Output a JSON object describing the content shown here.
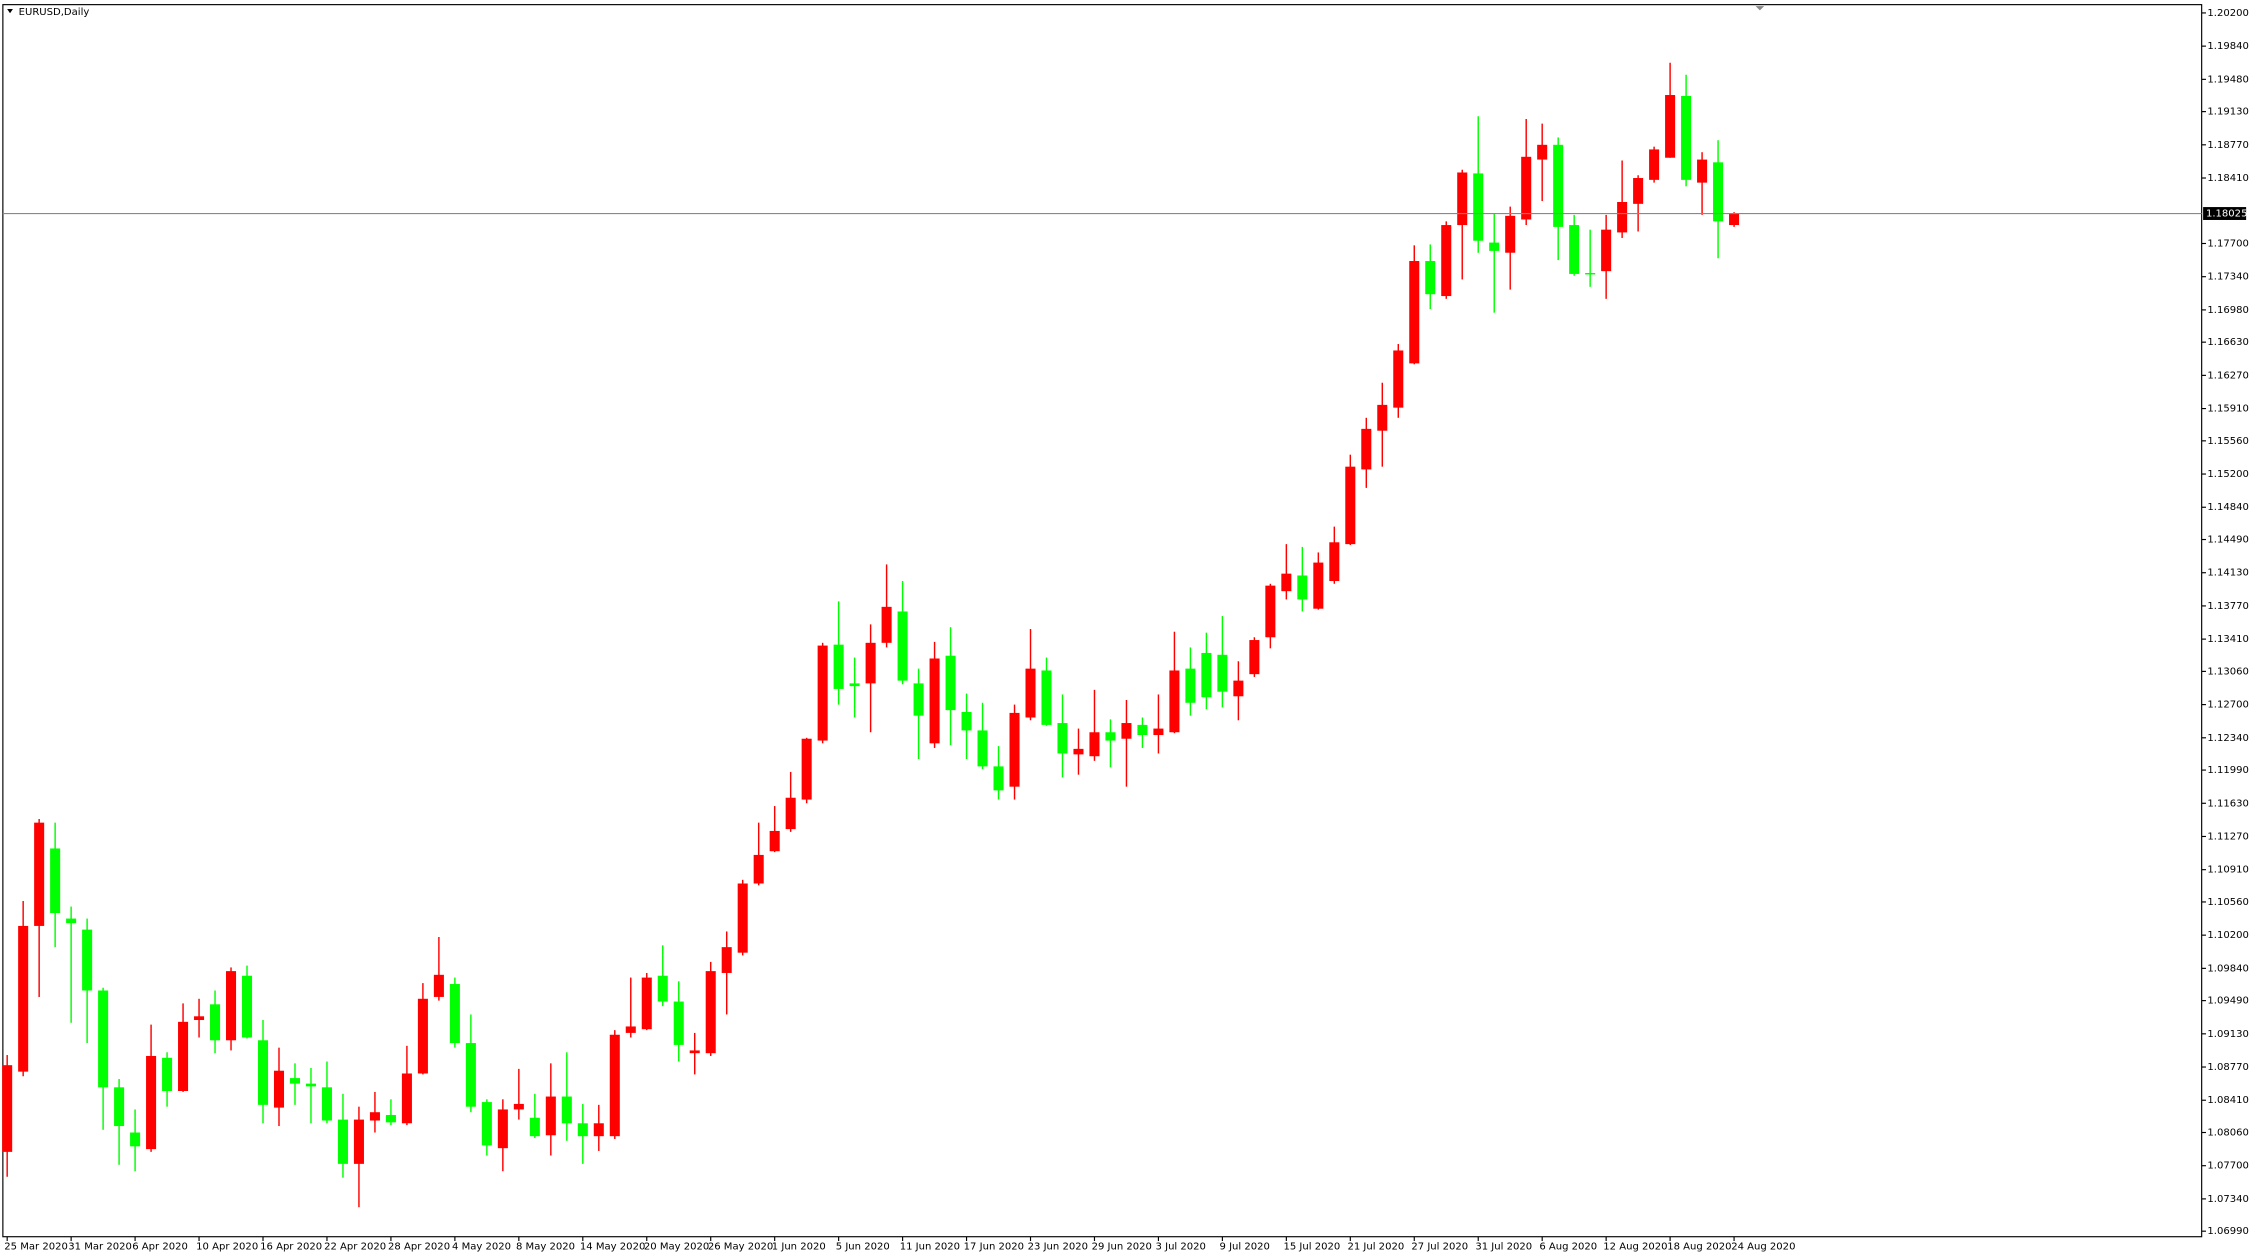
{
  "chart_data": {
    "type": "candlestick",
    "title": "EURUSD,Daily",
    "up_color": "#ff0000",
    "down_color": "#00ff00",
    "grid": false,
    "categories": [
      "25 Mar 2020",
      null,
      null,
      null,
      "31 Mar 2020",
      null,
      null,
      null,
      "6 Apr 2020",
      null,
      null,
      null,
      "10 Apr 2020",
      null,
      null,
      null,
      "16 Apr 2020",
      null,
      null,
      null,
      "22 Apr 2020",
      null,
      null,
      null,
      "28 Apr 2020",
      null,
      null,
      null,
      "4 May 2020",
      null,
      null,
      null,
      "8 May 2020",
      null,
      null,
      null,
      "14 May 2020",
      null,
      null,
      null,
      "20 May 2020",
      null,
      null,
      null,
      "26 May 2020",
      null,
      null,
      null,
      "1 Jun 2020",
      null,
      null,
      null,
      "5 Jun 2020",
      null,
      null,
      null,
      "11 Jun 2020",
      null,
      null,
      null,
      "17 Jun 2020",
      null,
      null,
      null,
      "23 Jun 2020",
      null,
      null,
      null,
      "29 Jun 2020",
      null,
      null,
      null,
      "3 Jul 2020",
      null,
      null,
      null,
      "9 Jul 2020",
      null,
      null,
      null,
      "15 Jul 2020",
      null,
      null,
      null,
      "21 Jul 2020",
      null,
      null,
      null,
      "27 Jul 2020",
      null,
      null,
      null,
      "31 Jul 2020",
      null,
      null,
      null,
      "6 Aug 2020",
      null,
      null,
      null,
      "12 Aug 2020",
      null,
      null,
      null,
      "18 Aug 2020",
      null,
      null,
      null,
      "24 Aug 2020"
    ],
    "open": [
      1.0785,
      1.0872,
      1.103,
      1.1114,
      1.1038,
      1.1026,
      1.096,
      1.0855,
      1.0806,
      1.0788,
      1.0887,
      1.0851,
      1.0928,
      1.0945,
      1.0906,
      1.0976,
      1.0906,
      1.0833,
      1.0865,
      1.0859,
      1.0855,
      1.082,
      1.0772,
      1.0819,
      1.0825,
      1.0816,
      1.087,
      1.0953,
      1.0967,
      1.0903,
      1.0839,
      1.0789,
      1.0831,
      1.0822,
      1.0803,
      1.0845,
      1.0816,
      1.0802,
      1.0802,
      1.0914,
      1.0918,
      1.0976,
      1.0948,
      1.0892,
      1.0892,
      1.0979,
      1.1001,
      1.1076,
      1.1111,
      1.1135,
      1.1167,
      1.1231,
      1.1335,
      1.1293,
      1.1293,
      1.1337,
      1.1371,
      1.1293,
      1.1228,
      1.1323,
      1.1262,
      1.1242,
      1.1203,
      1.1181,
      1.1256,
      1.1307,
      1.125,
      1.1216,
      1.1214,
      1.124,
      1.1233,
      1.1248,
      1.1237,
      1.124,
      1.1309,
      1.1326,
      1.1324,
      1.1279,
      1.1303,
      1.1343,
      1.1393,
      1.141,
      1.1374,
      1.1404,
      1.1444,
      1.1525,
      1.1567,
      1.1592,
      1.164,
      1.1751,
      1.1713,
      1.179,
      1.1846,
      1.1771,
      1.176,
      1.1796,
      1.1861,
      1.1877,
      1.179,
      1.1738,
      1.174,
      1.1782,
      1.1813,
      1.1839,
      1.1863,
      1.193,
      1.1836,
      1.1858,
      1.179
    ],
    "high": [
      1.089,
      1.1057,
      1.1146,
      1.1142,
      1.1051,
      1.1038,
      1.0963,
      1.0864,
      1.0831,
      1.0923,
      1.0893,
      1.0946,
      1.0951,
      1.096,
      1.0985,
      1.0987,
      1.0928,
      1.0898,
      1.0881,
      1.0876,
      1.0883,
      1.0848,
      1.0834,
      1.085,
      1.0842,
      1.09,
      1.0968,
      1.1018,
      1.0974,
      1.0934,
      1.0842,
      1.0842,
      1.0875,
      1.0848,
      1.0881,
      1.0893,
      1.0837,
      1.0836,
      1.0917,
      1.0974,
      1.0979,
      1.1009,
      1.097,
      1.0914,
      1.0991,
      1.1024,
      1.108,
      1.1142,
      1.116,
      1.1197,
      1.1234,
      1.1337,
      1.1382,
      1.1321,
      1.1357,
      1.1422,
      1.1404,
      1.1309,
      1.1338,
      1.1354,
      1.1282,
      1.1272,
      1.1225,
      1.127,
      1.1352,
      1.1321,
      1.1281,
      1.1244,
      1.1286,
      1.1254,
      1.1275,
      1.1256,
      1.1281,
      1.1349,
      1.1332,
      1.1348,
      1.1366,
      1.1317,
      1.1343,
      1.1401,
      1.1444,
      1.1441,
      1.1435,
      1.1463,
      1.1541,
      1.1581,
      1.1619,
      1.1661,
      1.1768,
      1.1769,
      1.1794,
      1.185,
      1.1908,
      1.1802,
      1.181,
      1.1905,
      1.19,
      1.1885,
      1.1801,
      1.1785,
      1.1801,
      1.186,
      1.1844,
      1.1875,
      1.1966,
      1.1953,
      1.1869,
      1.1882,
      1.1804
    ],
    "low": [
      1.0758,
      1.0867,
      1.0953,
      1.1007,
      1.0925,
      1.0903,
      1.0809,
      1.0771,
      1.0764,
      1.0785,
      1.0834,
      1.085,
      1.0909,
      1.0892,
      1.0895,
      1.0908,
      1.0816,
      1.0813,
      1.0836,
      1.0816,
      1.0816,
      1.0757,
      1.0725,
      1.0806,
      1.0814,
      1.0814,
      1.0869,
      1.0949,
      1.0898,
      1.0828,
      1.0781,
      1.0764,
      1.082,
      1.08,
      1.0781,
      1.0797,
      1.0772,
      1.0786,
      1.0799,
      1.0909,
      1.0917,
      1.0943,
      1.0883,
      1.0869,
      1.0889,
      1.0934,
      1.0998,
      1.1074,
      1.111,
      1.1132,
      1.1163,
      1.1228,
      1.127,
      1.1256,
      1.124,
      1.1332,
      1.1292,
      1.1211,
      1.1223,
      1.1226,
      1.1211,
      1.12,
      1.1167,
      1.1167,
      1.1253,
      1.1247,
      1.1191,
      1.1194,
      1.1209,
      1.1202,
      1.1181,
      1.1223,
      1.1217,
      1.1239,
      1.1258,
      1.1265,
      1.1267,
      1.1253,
      1.13,
      1.1331,
      1.1384,
      1.1371,
      1.1373,
      1.1401,
      1.1443,
      1.1505,
      1.1528,
      1.1581,
      1.1639,
      1.1699,
      1.171,
      1.1731,
      1.176,
      1.1695,
      1.172,
      1.179,
      1.1816,
      1.1752,
      1.1735,
      1.1723,
      1.171,
      1.1776,
      1.1783,
      1.1836,
      1.1863,
      1.1832,
      1.1801,
      1.1754,
      1.1788
    ],
    "close": [
      1.0879,
      1.103,
      1.1142,
      1.1044,
      1.1033,
      1.096,
      1.0855,
      1.0813,
      1.0791,
      1.0889,
      1.0851,
      1.0926,
      1.0932,
      1.0906,
      1.0981,
      1.0909,
      1.0836,
      1.0873,
      1.0859,
      1.0856,
      1.0819,
      1.0772,
      1.082,
      1.0828,
      1.0817,
      1.087,
      1.0951,
      1.0977,
      1.0903,
      1.0834,
      1.0792,
      1.0831,
      1.0837,
      1.0802,
      1.0845,
      1.0816,
      1.0802,
      1.0816,
      1.0912,
      1.0921,
      1.0974,
      1.0948,
      1.0901,
      1.0895,
      1.0981,
      1.1007,
      1.1076,
      1.1107,
      1.1133,
      1.1169,
      1.1233,
      1.1334,
      1.1287,
      1.129,
      1.1337,
      1.1376,
      1.1296,
      1.1258,
      1.132,
      1.1264,
      1.1242,
      1.1203,
      1.1177,
      1.1261,
      1.1309,
      1.1248,
      1.1217,
      1.1222,
      1.124,
      1.1231,
      1.125,
      1.1237,
      1.1244,
      1.1307,
      1.1272,
      1.1278,
      1.1284,
      1.1296,
      1.134,
      1.1399,
      1.1412,
      1.1384,
      1.1424,
      1.1446,
      1.1528,
      1.1569,
      1.1595,
      1.1654,
      1.1751,
      1.1715,
      1.179,
      1.1847,
      1.1773,
      1.1762,
      1.18,
      1.1864,
      1.1877,
      1.1788,
      1.1737,
      1.1737,
      1.1785,
      1.1815,
      1.1841,
      1.1872,
      1.1931,
      1.1839,
      1.1861,
      1.1794,
      1.18025
    ],
    "current_price": 1.18025,
    "ylim": [
      1.0693,
      1.2029
    ],
    "yticks": [
      {
        "value": 1.202,
        "label": "1.20200"
      },
      {
        "value": 1.1984,
        "label": "1.19840"
      },
      {
        "value": 1.1948,
        "label": "1.19480"
      },
      {
        "value": 1.1913,
        "label": "1.19130"
      },
      {
        "value": 1.1877,
        "label": "1.18770"
      },
      {
        "value": 1.1841,
        "label": "1.18410"
      },
      {
        "value": 1.177,
        "label": "1.17700"
      },
      {
        "value": 1.1734,
        "label": "1.17340"
      },
      {
        "value": 1.1698,
        "label": "1.16980"
      },
      {
        "value": 1.1663,
        "label": "1.16630"
      },
      {
        "value": 1.1627,
        "label": "1.16270"
      },
      {
        "value": 1.1591,
        "label": "1.15910"
      },
      {
        "value": 1.1556,
        "label": "1.15560"
      },
      {
        "value": 1.152,
        "label": "1.15200"
      },
      {
        "value": 1.1484,
        "label": "1.14840"
      },
      {
        "value": 1.1449,
        "label": "1.14490"
      },
      {
        "value": 1.1413,
        "label": "1.14130"
      },
      {
        "value": 1.1377,
        "label": "1.13770"
      },
      {
        "value": 1.1341,
        "label": "1.13410"
      },
      {
        "value": 1.1306,
        "label": "1.13060"
      },
      {
        "value": 1.127,
        "label": "1.12700"
      },
      {
        "value": 1.1234,
        "label": "1.12340"
      },
      {
        "value": 1.1199,
        "label": "1.11990"
      },
      {
        "value": 1.1163,
        "label": "1.11630"
      },
      {
        "value": 1.1127,
        "label": "1.11270"
      },
      {
        "value": 1.1091,
        "label": "1.10910"
      },
      {
        "value": 1.1056,
        "label": "1.10560"
      },
      {
        "value": 1.102,
        "label": "1.10200"
      },
      {
        "value": 1.0984,
        "label": "1.09840"
      },
      {
        "value": 1.0949,
        "label": "1.09490"
      },
      {
        "value": 1.0913,
        "label": "1.09130"
      },
      {
        "value": 1.0877,
        "label": "1.08770"
      },
      {
        "value": 1.0841,
        "label": "1.08410"
      },
      {
        "value": 1.0806,
        "label": "1.08060"
      },
      {
        "value": 1.077,
        "label": "1.07700"
      },
      {
        "value": 1.0734,
        "label": "1.07340"
      },
      {
        "value": 1.0699,
        "label": "1.06990"
      }
    ]
  }
}
